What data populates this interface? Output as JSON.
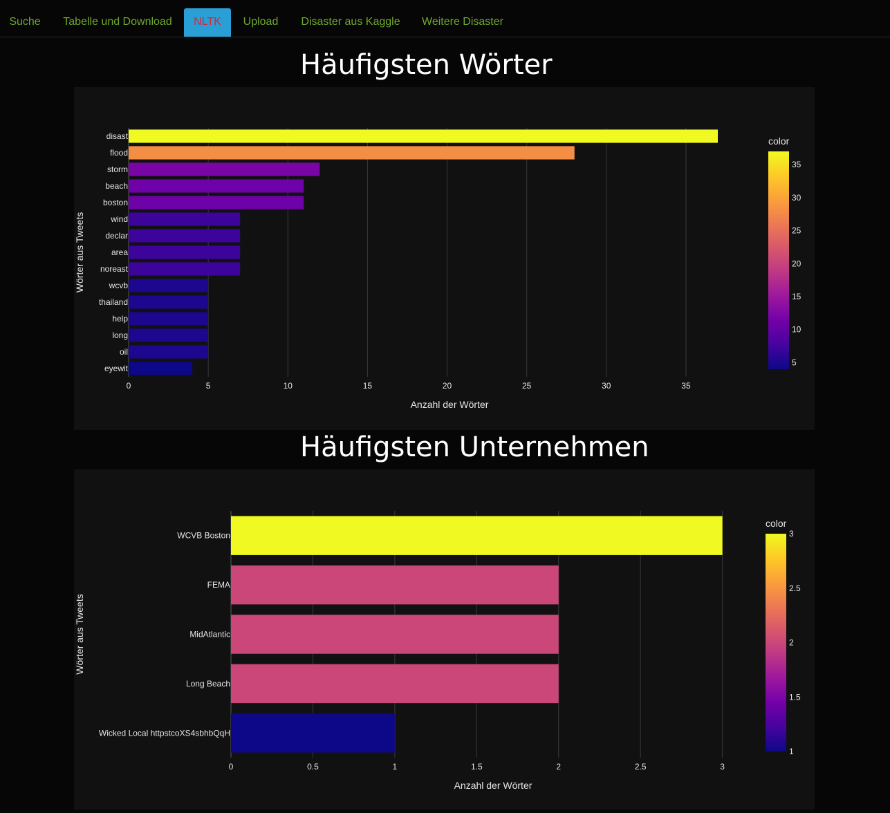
{
  "nav": {
    "tabs": [
      {
        "label": "Suche"
      },
      {
        "label": "Tabelle und Download"
      },
      {
        "label": "NLTK"
      },
      {
        "label": "Upload"
      },
      {
        "label": "Disaster aus Kaggle"
      },
      {
        "label": "Weitere Disaster"
      }
    ],
    "active_tab": "NLTK"
  },
  "colors": {
    "background": "#060606",
    "panel": "#111111",
    "nav_text": "#6fa82e",
    "nav_active_bg": "#2a9fd6",
    "nav_active_text": "#d3283a",
    "colorscale": [
      "#0d0887",
      "#46039f",
      "#7201a8",
      "#9c179e",
      "#bd3786",
      "#d8576b",
      "#ed7953",
      "#fb9f3a",
      "#fdca26",
      "#f0f921"
    ]
  },
  "sections": {
    "words_title": "Häufigsten Wörter",
    "companies_title": "Häufigsten Unternehmen"
  },
  "chart_data": [
    {
      "type": "bar",
      "orientation": "horizontal",
      "title": "Häufigsten Wörter",
      "xlabel": "Anzahl der Wörter",
      "ylabel": "Wörter aus Tweets",
      "categories": [
        "disast",
        "flood",
        "storm",
        "beach",
        "boston",
        "wind",
        "declar",
        "area",
        "noreast",
        "wcvb",
        "thailand",
        "help",
        "long",
        "oil",
        "eyewit"
      ],
      "values": [
        37,
        28,
        12,
        11,
        11,
        7,
        7,
        7,
        7,
        5,
        5,
        5,
        5,
        5,
        4
      ],
      "xlim": [
        0,
        40.3
      ],
      "xticks": [
        0,
        5,
        10,
        15,
        20,
        25,
        30,
        35
      ],
      "grid": true,
      "colorbar": {
        "title": "color",
        "range": [
          4,
          37
        ],
        "ticks": [
          5,
          10,
          15,
          20,
          25,
          30,
          35
        ]
      }
    },
    {
      "type": "bar",
      "orientation": "horizontal",
      "title": "Häufigsten Unternehmen",
      "xlabel": "Anzahl der Wörter",
      "ylabel": "Wörter aus Tweets",
      "categories": [
        "WCVB Boston",
        "FEMA",
        "MidAtlantic",
        "Long Beach",
        "Wicked Local httpstcoXS4sbhbQqH"
      ],
      "values": [
        3,
        2,
        2,
        2,
        1
      ],
      "xlim": [
        0,
        3.2
      ],
      "xticks": [
        0,
        0.5,
        1,
        1.5,
        2,
        2.5,
        3
      ],
      "grid": true,
      "colorbar": {
        "title": "color",
        "range": [
          1,
          3
        ],
        "ticks": [
          1,
          1.5,
          2,
          2.5,
          3
        ]
      }
    }
  ]
}
